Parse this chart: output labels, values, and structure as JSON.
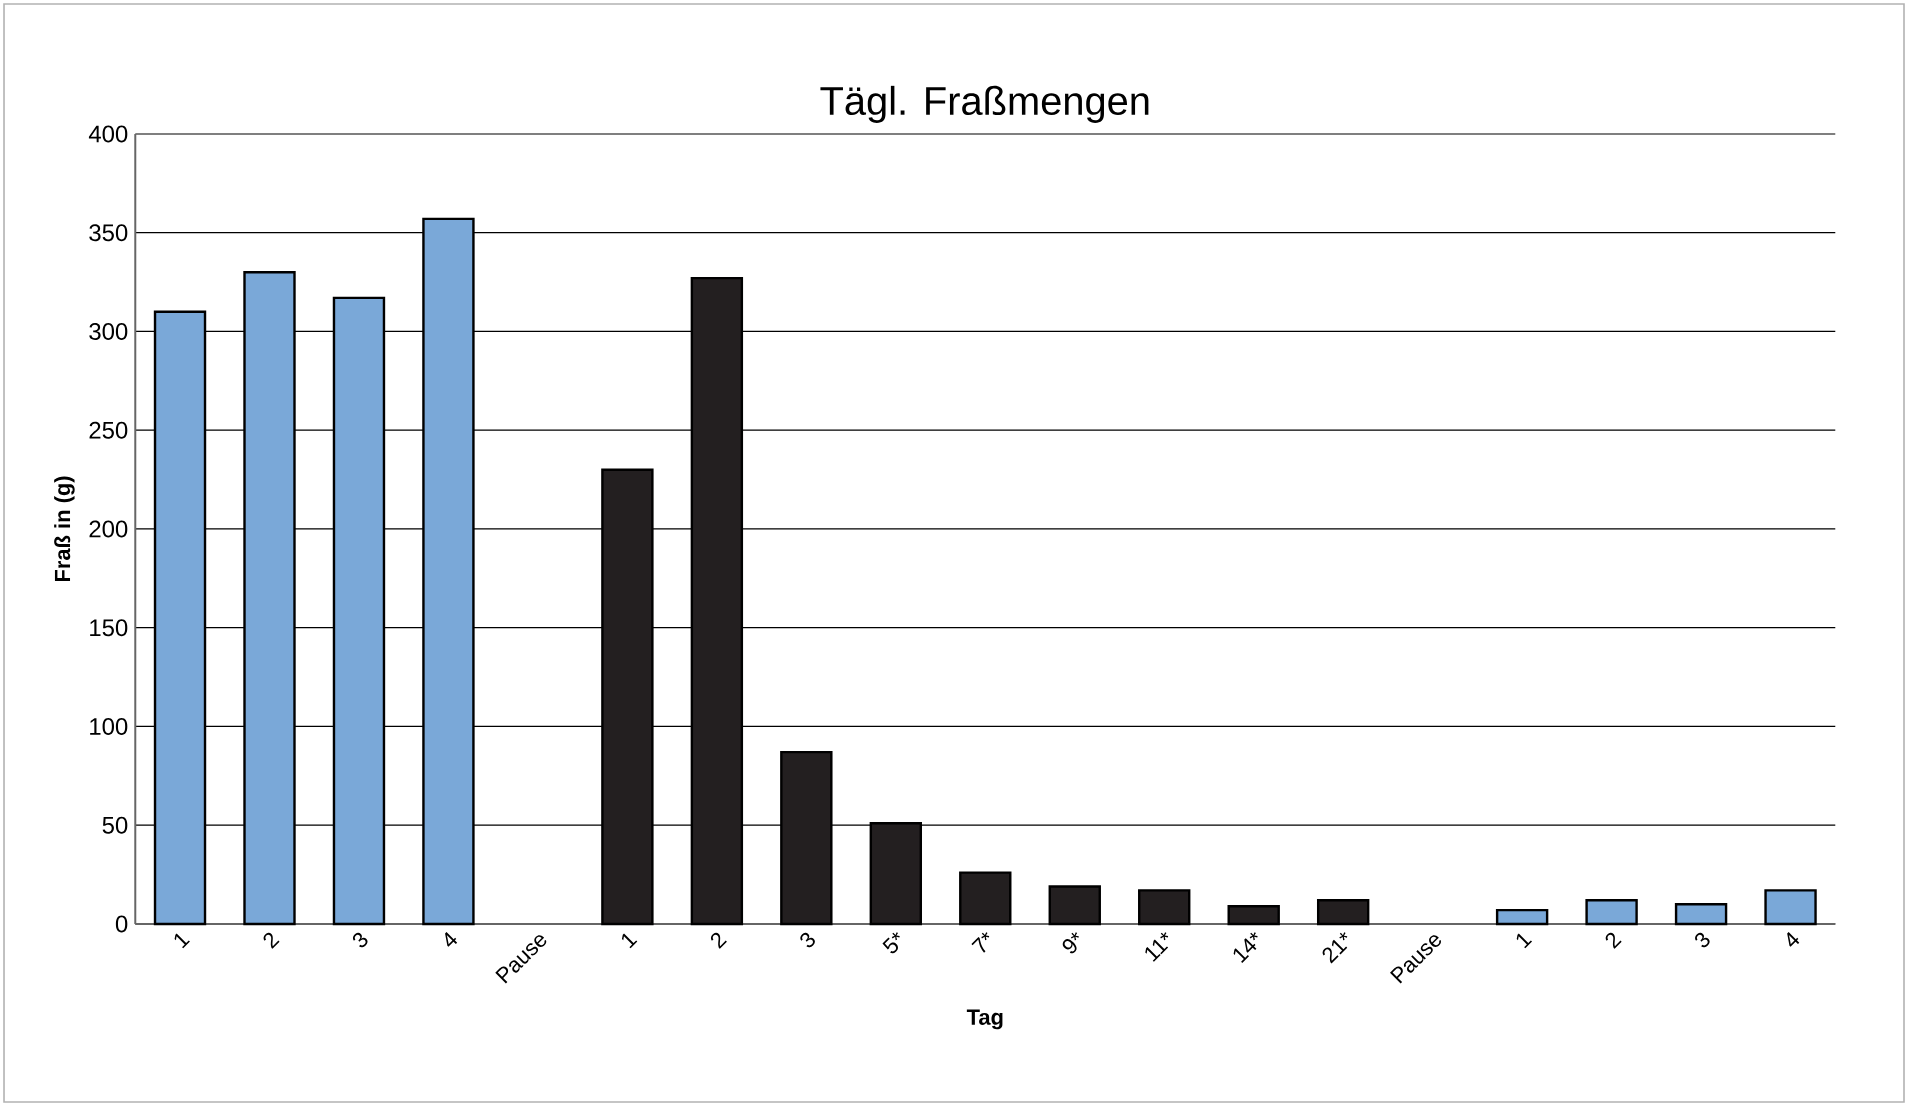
{
  "chart_data": {
    "type": "bar",
    "title": "Tägl. Fraßmengen",
    "xlabel": "Tag",
    "ylabel": "Fraß in (g)",
    "categories": [
      "1",
      "2",
      "3",
      "4",
      "Pause",
      "1",
      "2",
      "3",
      "5*",
      "7*",
      "9*",
      "11*",
      "14*",
      "21*",
      "Pause",
      "1",
      "2",
      "3",
      "4"
    ],
    "values": [
      310,
      330,
      317,
      357,
      null,
      230,
      327,
      87,
      51,
      26,
      19,
      17,
      9,
      12,
      null,
      7,
      12,
      10,
      17
    ],
    "colors": [
      "#7aa8d8",
      "#7aa8d8",
      "#7aa8d8",
      "#7aa8d8",
      "#7aa8d8",
      "#231f20",
      "#231f20",
      "#231f20",
      "#231f20",
      "#231f20",
      "#231f20",
      "#231f20",
      "#231f20",
      "#231f20",
      "#7aa8d8",
      "#7aa8d8",
      "#7aa8d8",
      "#7aa8d8",
      "#7aa8d8"
    ],
    "ylim": [
      0,
      400
    ],
    "yticks": [
      0,
      50,
      100,
      150,
      200,
      250,
      300,
      350,
      400
    ],
    "grid": "y"
  }
}
